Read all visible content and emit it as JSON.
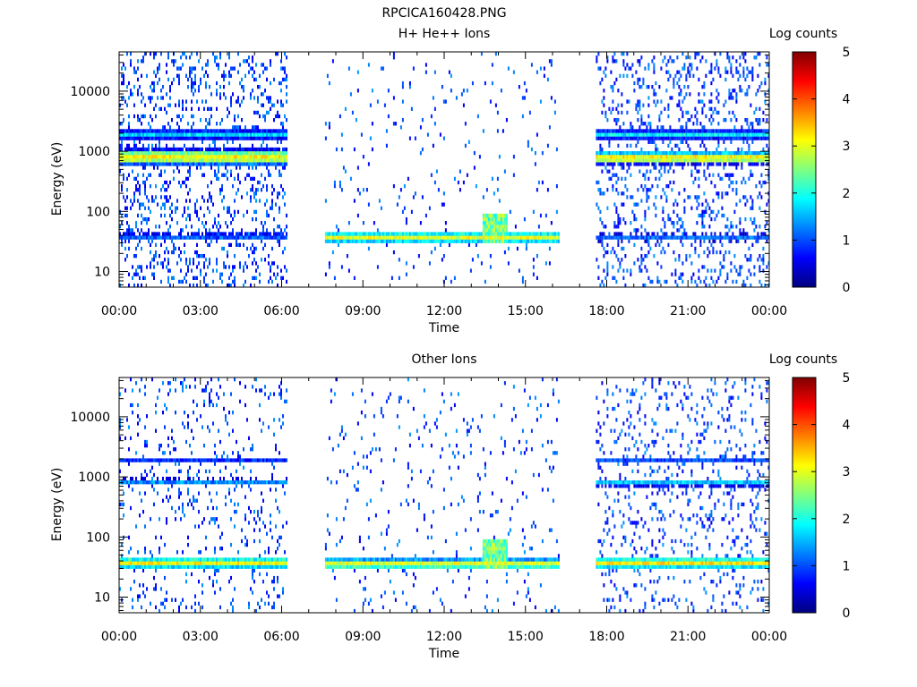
{
  "figure_title": "RPCICA160428.PNG",
  "chart_data": [
    {
      "type": "heatmap",
      "title": "H+ He++ Ions",
      "xlabel": "Time",
      "ylabel": "Energy (eV)",
      "y_scale": "log",
      "ylim": [
        5.5,
        45000
      ],
      "xlim_hours": [
        0,
        24
      ],
      "x_ticks": [
        {
          "h": 0,
          "label": "00:00"
        },
        {
          "h": 3,
          "label": "03:00"
        },
        {
          "h": 6,
          "label": "06:00"
        },
        {
          "h": 9,
          "label": "09:00"
        },
        {
          "h": 12,
          "label": "12:00"
        },
        {
          "h": 15,
          "label": "15:00"
        },
        {
          "h": 18,
          "label": "18:00"
        },
        {
          "h": 21,
          "label": "21:00"
        },
        {
          "h": 24,
          "label": "00:00"
        }
      ],
      "y_ticks": [
        {
          "v": 10,
          "label": "10"
        },
        {
          "v": 100,
          "label": "100"
        },
        {
          "v": 1000,
          "label": "1000"
        },
        {
          "v": 10000,
          "label": "10000"
        }
      ],
      "colorbar": {
        "label": "Log counts",
        "range": [
          0,
          5
        ],
        "ticks": [
          "0",
          "1",
          "2",
          "3",
          "4",
          "5"
        ]
      },
      "segments": [
        {
          "start": 0.0,
          "end": 6.2,
          "noise": 0.55,
          "bands": [
            {
              "center": 800,
              "width": 0.09,
              "level": 3.1
            },
            {
              "center": 1900,
              "width": 0.05,
              "level": 1.7
            },
            {
              "center": 38,
              "width": 0.04,
              "level": 1.1
            }
          ]
        },
        {
          "start": 7.6,
          "end": 16.2,
          "noise": 0.1,
          "bands": [
            {
              "center": 37,
              "width": 0.06,
              "level": 3.0
            }
          ]
        },
        {
          "start": 17.6,
          "end": 24.0,
          "noise": 0.5,
          "bands": [
            {
              "center": 780,
              "width": 0.07,
              "level": 3.2
            },
            {
              "center": 1900,
              "width": 0.05,
              "level": 1.8
            },
            {
              "center": 37,
              "width": 0.04,
              "level": 1.1
            }
          ]
        }
      ],
      "events": [
        {
          "start": 13.4,
          "end": 14.3,
          "low": 30,
          "high": 95,
          "level": 2.4
        }
      ]
    },
    {
      "type": "heatmap",
      "title": "Other Ions",
      "xlabel": "Time",
      "ylabel": "Energy (eV)",
      "y_scale": "log",
      "ylim": [
        5.5,
        45000
      ],
      "xlim_hours": [
        0,
        24
      ],
      "x_ticks": [
        {
          "h": 0,
          "label": "00:00"
        },
        {
          "h": 3,
          "label": "03:00"
        },
        {
          "h": 6,
          "label": "06:00"
        },
        {
          "h": 9,
          "label": "09:00"
        },
        {
          "h": 12,
          "label": "12:00"
        },
        {
          "h": 15,
          "label": "15:00"
        },
        {
          "h": 18,
          "label": "18:00"
        },
        {
          "h": 21,
          "label": "21:00"
        },
        {
          "h": 24,
          "label": "00:00"
        }
      ],
      "y_ticks": [
        {
          "v": 10,
          "label": "10"
        },
        {
          "v": 100,
          "label": "100"
        },
        {
          "v": 1000,
          "label": "1000"
        },
        {
          "v": 10000,
          "label": "10000"
        }
      ],
      "colorbar": {
        "label": "Log counts",
        "range": [
          0,
          5
        ],
        "ticks": [
          "0",
          "1",
          "2",
          "3",
          "4",
          "5"
        ]
      },
      "segments": [
        {
          "start": 0.0,
          "end": 6.2,
          "noise": 0.25,
          "bands": [
            {
              "center": 37,
              "width": 0.06,
              "level": 3.1
            },
            {
              "center": 820,
              "width": 0.04,
              "level": 1.3
            },
            {
              "center": 1900,
              "width": 0.03,
              "level": 0.8
            }
          ]
        },
        {
          "start": 7.6,
          "end": 16.2,
          "noise": 0.12,
          "bands": [
            {
              "center": 36,
              "width": 0.06,
              "level": 3.0
            }
          ]
        },
        {
          "start": 17.6,
          "end": 24.0,
          "noise": 0.3,
          "bands": [
            {
              "center": 37,
              "width": 0.06,
              "level": 3.2
            },
            {
              "center": 800,
              "width": 0.04,
              "level": 1.6
            },
            {
              "center": 1850,
              "width": 0.03,
              "level": 1.0
            }
          ]
        }
      ],
      "events": [
        {
          "start": 13.4,
          "end": 14.3,
          "low": 30,
          "high": 95,
          "level": 2.4
        }
      ]
    }
  ]
}
